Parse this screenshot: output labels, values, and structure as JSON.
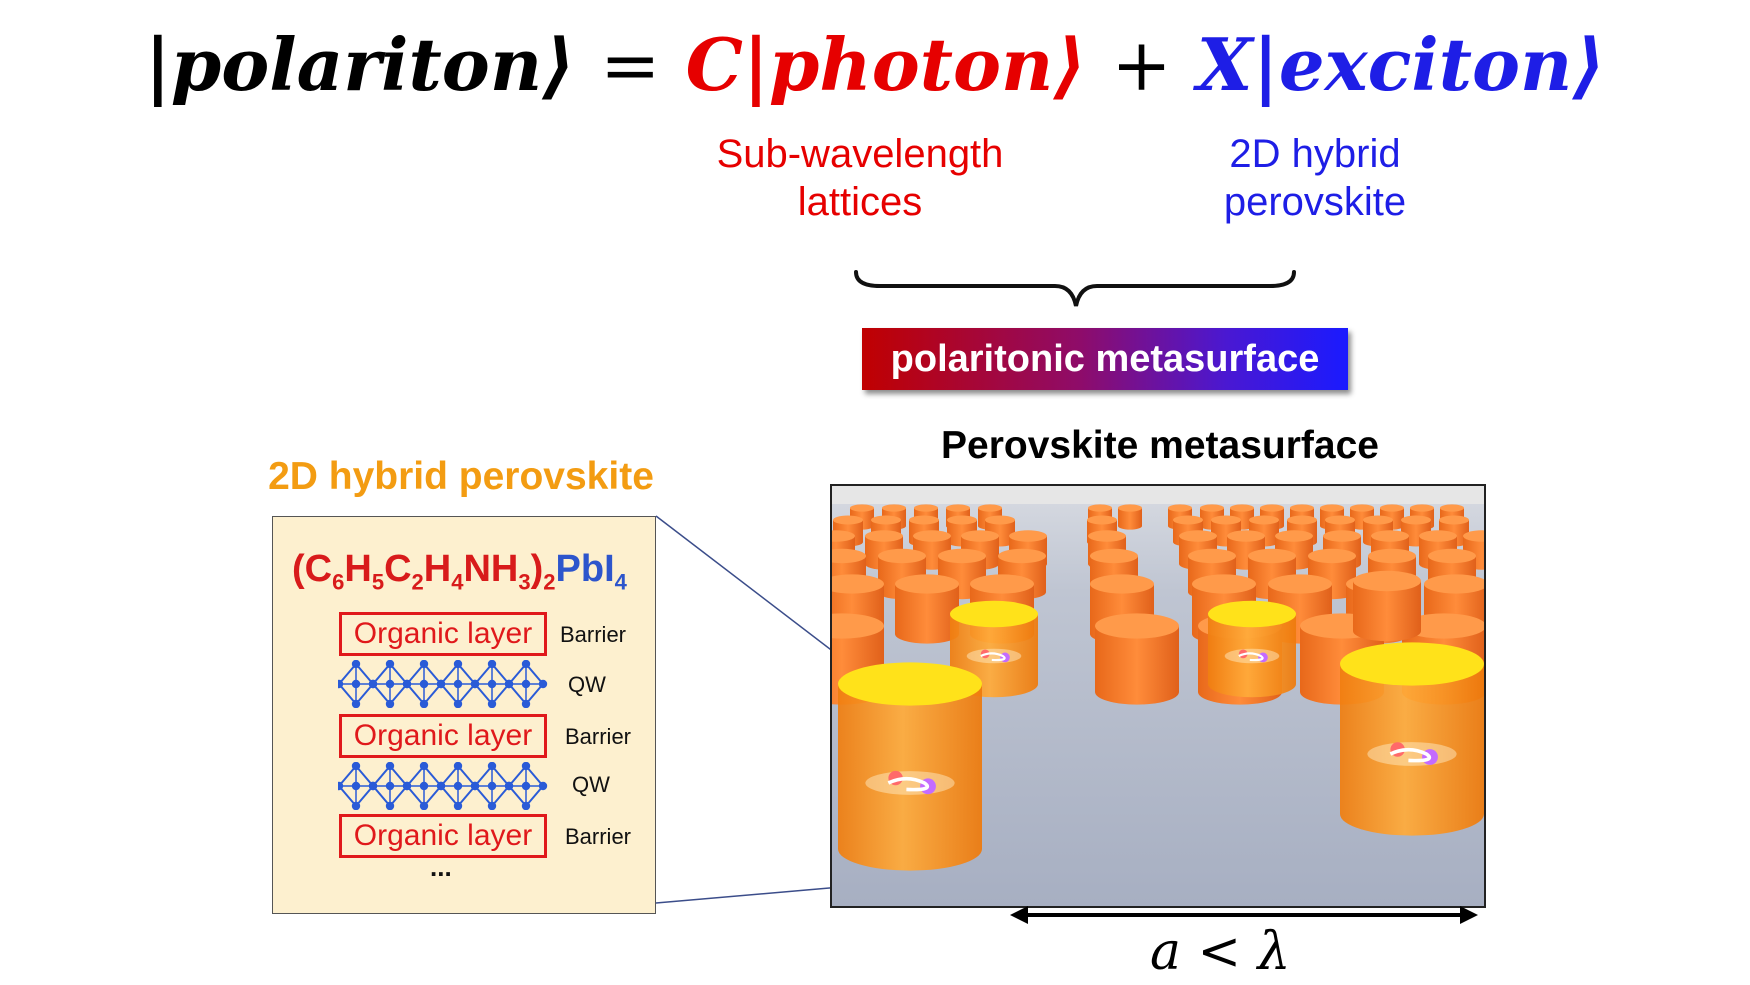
{
  "equation": {
    "part1": "|polariton⟩",
    "equals": "=",
    "c_photon": "C|photon⟩",
    "plus": "+",
    "x_exciton": "X|exciton⟩"
  },
  "photon_label": {
    "line1": "Sub-wavelength",
    "line2": "lattices"
  },
  "exciton_label": {
    "line1": "2D hybrid",
    "line2": "perovskite"
  },
  "banner": "polaritonic metasurface",
  "left_panel": {
    "title": "2D hybrid perovskite",
    "formula": {
      "p1": "(C",
      "s1": "6",
      "p2": "H",
      "s2": "5",
      "p3": "C",
      "s3": "2",
      "p4": "H",
      "s4": "4",
      "p5": "NH",
      "s5": "3",
      "p6": ")",
      "s6": "2",
      "pb": "PbI",
      "s7": "4"
    },
    "layers": [
      {
        "label": "Organic layer",
        "side": "Barrier"
      },
      {
        "label": "Organic layer",
        "side": "Barrier"
      },
      {
        "label": "Organic layer",
        "side": "Barrier"
      }
    ],
    "qw_labels": [
      "QW",
      "QW"
    ],
    "ellipsis": "..."
  },
  "right_panel": {
    "title": "Perovskite metasurface"
  },
  "lattice_label": "a < λ",
  "colors": {
    "photon": "#e60000",
    "exciton": "#1e1ee6",
    "perovskite_title": "#f39c12",
    "panel_bg": "#fdf0cf",
    "octahedra": "#2a5bd7",
    "pillar": "#ff9a1f"
  }
}
